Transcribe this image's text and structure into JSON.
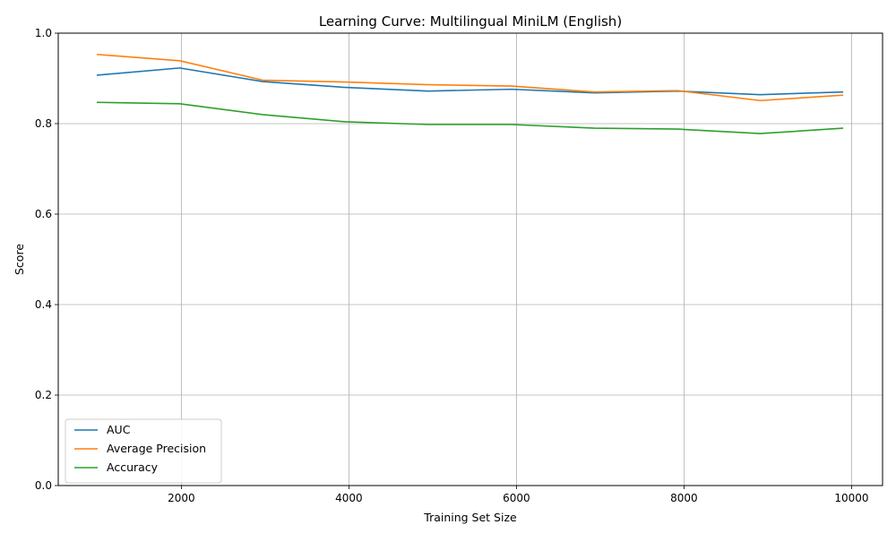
{
  "chart_data": {
    "type": "line",
    "title": "Learning Curve: Multilingual MiniLM (English)",
    "xlabel": "Training Set Size",
    "ylabel": "Score",
    "xlim": [
      530,
      10370
    ],
    "ylim": [
      0.0,
      1.0
    ],
    "xticks": [
      2000,
      4000,
      6000,
      8000,
      10000
    ],
    "yticks": [
      0.0,
      0.2,
      0.4,
      0.6,
      0.8,
      1.0
    ],
    "xtick_labels": [
      "2000",
      "4000",
      "6000",
      "8000",
      "10000"
    ],
    "ytick_labels": [
      "0.0",
      "0.2",
      "0.4",
      "0.6",
      "0.8",
      "1.0"
    ],
    "grid": true,
    "legend_position": "lower-left",
    "x": [
      990,
      1980,
      2970,
      3960,
      4950,
      5940,
      6930,
      7920,
      8910,
      9900
    ],
    "series": [
      {
        "name": "AUC",
        "color": "#1f77b4",
        "values": [
          0.907,
          0.923,
          0.893,
          0.88,
          0.872,
          0.876,
          0.868,
          0.872,
          0.864,
          0.87
        ]
      },
      {
        "name": "Average Precision",
        "color": "#ff7f0e",
        "values": [
          0.953,
          0.939,
          0.896,
          0.892,
          0.886,
          0.883,
          0.87,
          0.873,
          0.851,
          0.863
        ]
      },
      {
        "name": "Accuracy",
        "color": "#2ca02c",
        "values": [
          0.847,
          0.844,
          0.82,
          0.804,
          0.798,
          0.798,
          0.79,
          0.788,
          0.778,
          0.79
        ]
      }
    ]
  }
}
